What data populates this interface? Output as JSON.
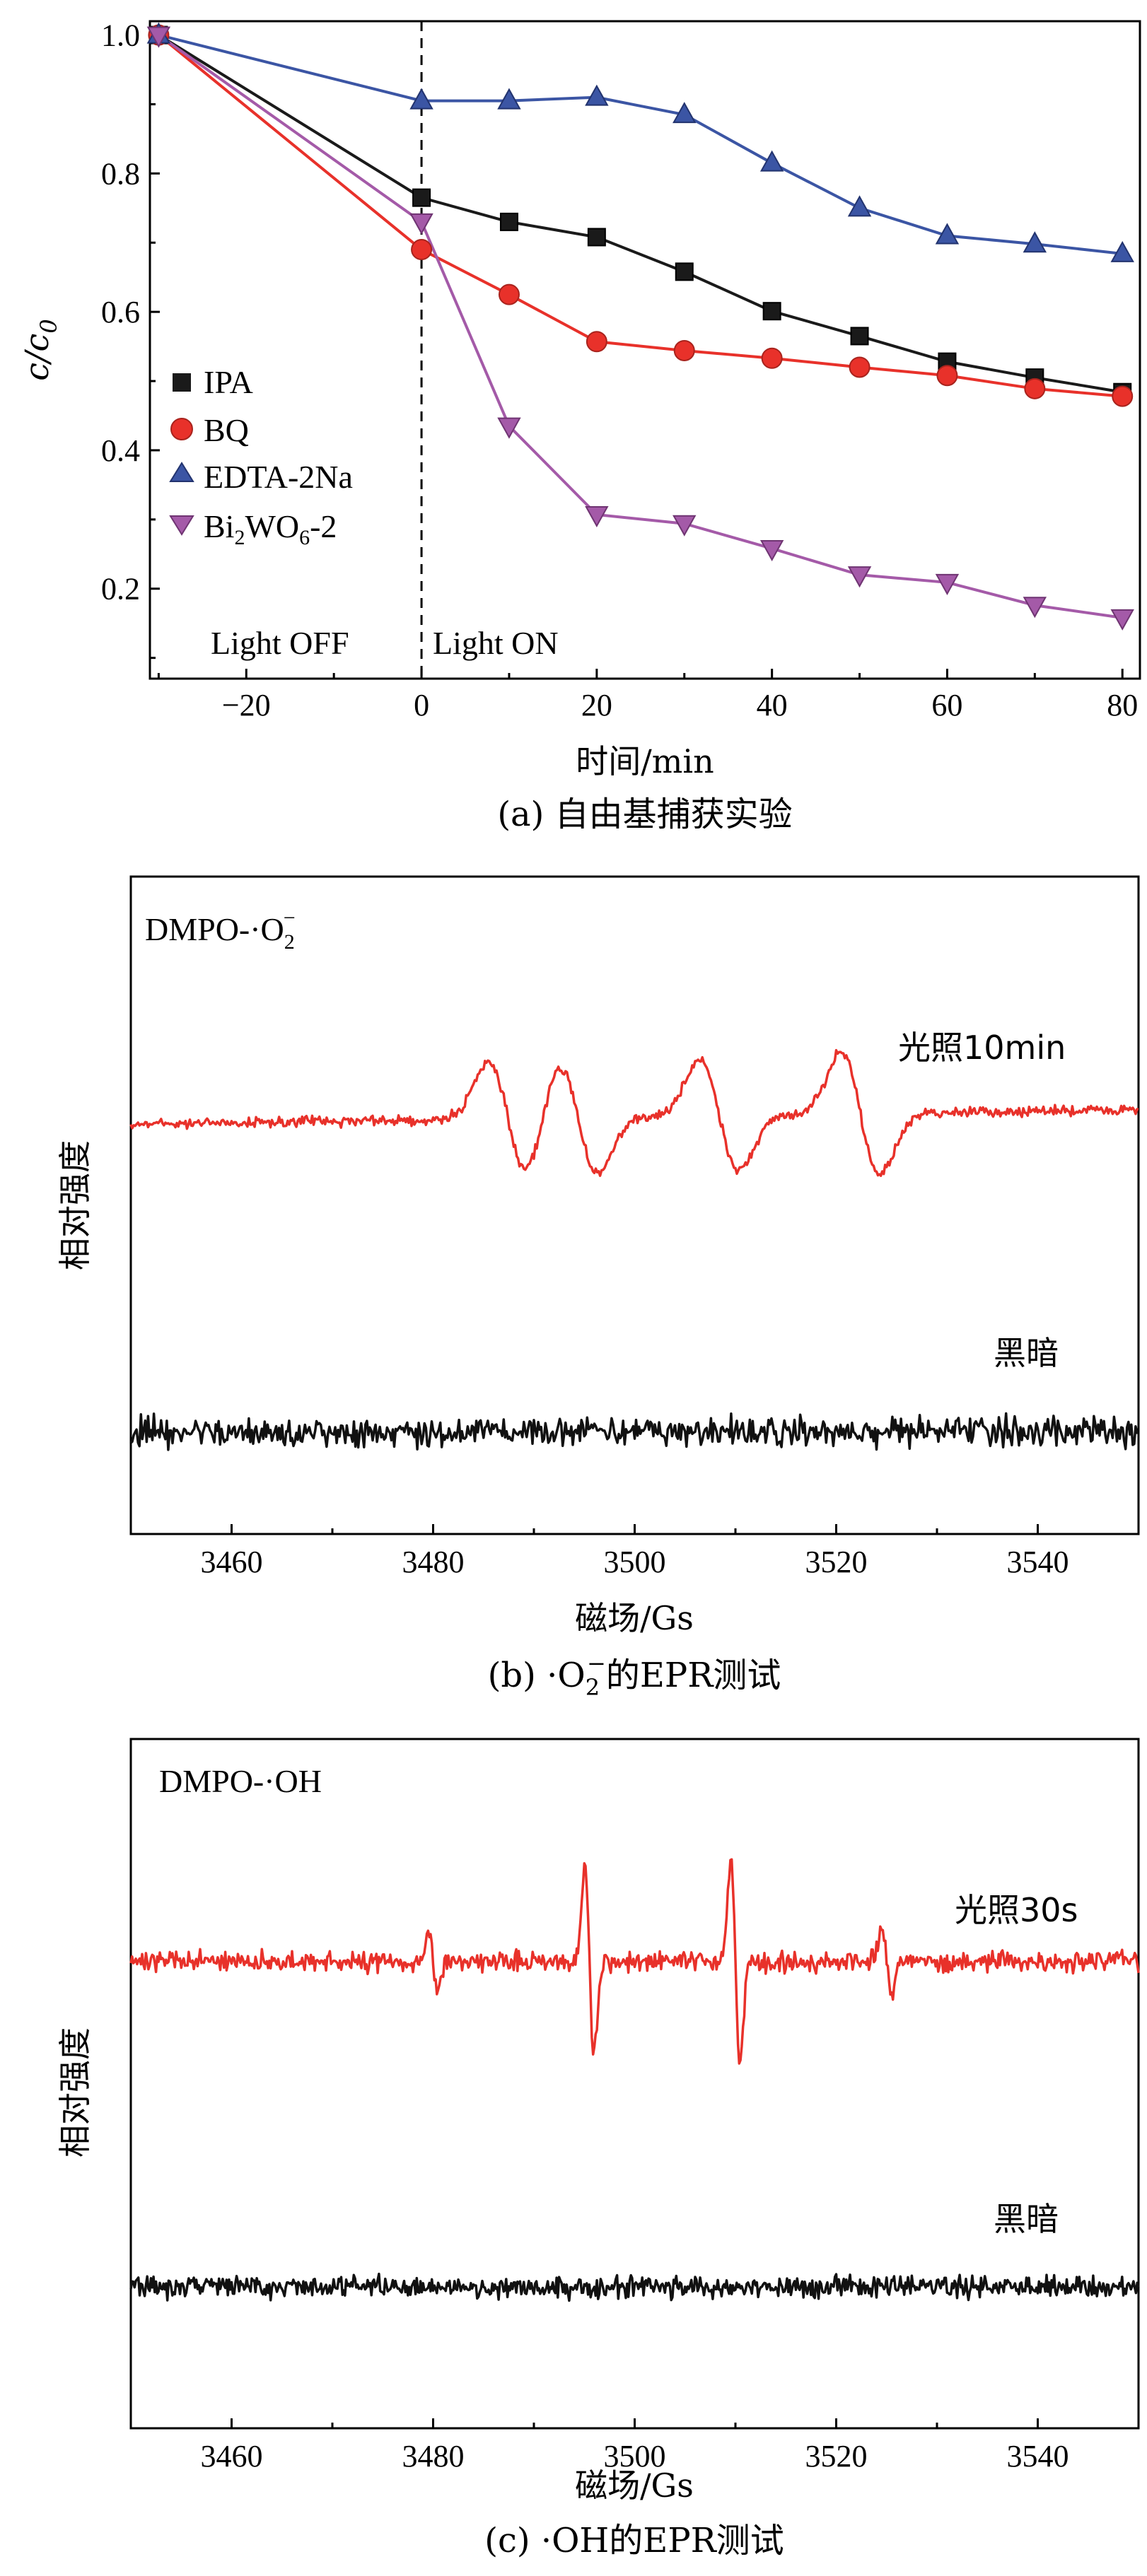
{
  "chart_data": [
    {
      "type": "line",
      "caption": "(a) 自由基捕获实验",
      "xlabel": "时间/min",
      "ylabel_main": "c/c",
      "ylabel_sub": "0",
      "xlim": [
        -31,
        82
      ],
      "ylim": [
        0.07,
        1.02
      ],
      "x_ticks": [
        -20,
        0,
        20,
        40,
        60,
        80
      ],
      "x_tick_labels": [
        "−20",
        "0",
        "20",
        "40",
        "60",
        "80"
      ],
      "y_ticks": [
        0.2,
        0.4,
        0.6,
        0.8,
        1.0
      ],
      "y_tick_labels": [
        "0.2",
        "0.4",
        "0.6",
        "0.8",
        "1.0"
      ],
      "divider_x": 0,
      "annotations": {
        "light_off": "Light OFF",
        "light_on": "Light ON"
      },
      "legend_position": "left-middle",
      "series": [
        {
          "name": "IPA",
          "marker": "square",
          "color": "#1a1a1a",
          "x": [
            -30,
            0,
            10,
            20,
            30,
            40,
            50,
            60,
            70,
            80
          ],
          "y": [
            1.0,
            0.765,
            0.73,
            0.708,
            0.658,
            0.601,
            0.565,
            0.528,
            0.505,
            0.484
          ]
        },
        {
          "name": "BQ",
          "marker": "circle",
          "color": "#e8312a",
          "x": [
            -30,
            0,
            10,
            20,
            30,
            40,
            50,
            60,
            70,
            80
          ],
          "y": [
            1.0,
            0.69,
            0.625,
            0.557,
            0.544,
            0.533,
            0.52,
            0.508,
            0.489,
            0.478
          ]
        },
        {
          "name": "EDTA-2Na",
          "marker": "triangle-up",
          "color": "#3b55a4",
          "x": [
            -30,
            0,
            10,
            20,
            30,
            40,
            50,
            60,
            70,
            80
          ],
          "y": [
            1.0,
            0.905,
            0.905,
            0.91,
            0.885,
            0.815,
            0.75,
            0.71,
            0.698,
            0.684
          ]
        },
        {
          "name": "Bi",
          "name_sub1": "2",
          "name_mid": "WO",
          "name_sub2": "6",
          "name_tail": "-2",
          "marker": "triangle-down",
          "color": "#a45aa8",
          "x": [
            -30,
            0,
            10,
            20,
            30,
            40,
            50,
            60,
            70,
            80
          ],
          "y": [
            1.0,
            0.73,
            0.435,
            0.307,
            0.294,
            0.258,
            0.22,
            0.209,
            0.176,
            0.158
          ]
        }
      ]
    },
    {
      "type": "line",
      "caption_prefix": "(b) ·O",
      "caption_sub": "2",
      "caption_sup": "−",
      "caption_suffix": "的EPR测试",
      "label_prefix": "DMPO-·O",
      "label_sub": "2",
      "label_sup": "−",
      "xlabel": "磁场/Gs",
      "ylabel": "相对强度",
      "xlim": [
        3450,
        3550
      ],
      "x_ticks": [
        3460,
        3480,
        3500,
        3520,
        3540
      ],
      "series": [
        {
          "name": "光照10min",
          "color": "#e8312a",
          "peaks": [
            3486,
            3493,
            3507,
            3521
          ]
        },
        {
          "name": "黑暗",
          "color": "#111111"
        }
      ]
    },
    {
      "type": "line",
      "caption_prefix": "(c) ·OH",
      "caption_suffix": "的EPR测试",
      "label": "DMPO-·OH",
      "xlabel": "磁场/Gs",
      "ylabel": "相对强度",
      "xlim": [
        3450,
        3550
      ],
      "x_ticks": [
        3460,
        3480,
        3500,
        3520,
        3540
      ],
      "series": [
        {
          "name": "光照30s",
          "color": "#e8312a",
          "peaks": [
            3480,
            3495.5,
            3510,
            3525
          ]
        },
        {
          "name": "黑暗",
          "color": "#111111"
        }
      ]
    }
  ]
}
